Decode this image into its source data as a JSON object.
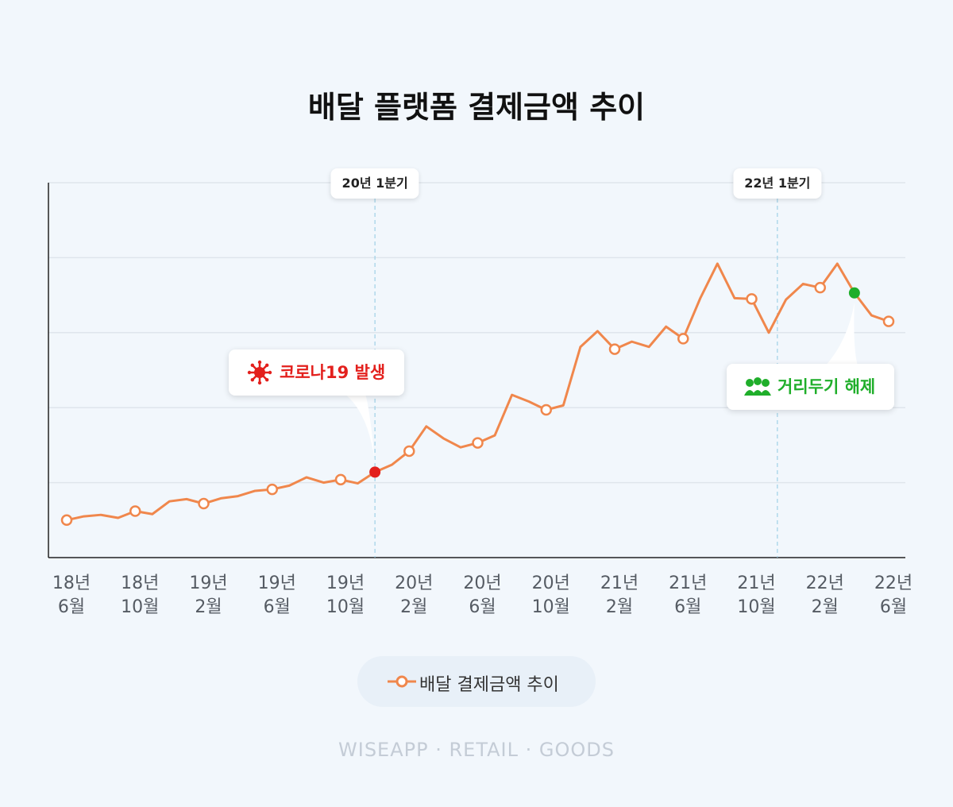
{
  "chart_data": {
    "type": "line",
    "title": "배달 플랫폼 결제금액 추이",
    "categories": [
      "18년 6월",
      null,
      null,
      null,
      "18년 10월",
      null,
      null,
      null,
      "19년 2월",
      null,
      null,
      null,
      "19년 6월",
      null,
      null,
      null,
      "19년 10월",
      null,
      null,
      null,
      "20년 2월",
      null,
      null,
      null,
      "20년 6월",
      null,
      null,
      null,
      "20년 10월",
      null,
      null,
      null,
      "21년 2월",
      null,
      null,
      null,
      "21년 6월",
      null,
      null,
      null,
      "21년 10월",
      null,
      null,
      null,
      "22년 2월",
      null,
      null,
      null,
      "22년 6월"
    ],
    "series": [
      {
        "name": "배달 결제금액 추이",
        "color": "#f0874c",
        "values": [
          0.5,
          0.55,
          0.57,
          0.53,
          0.62,
          0.58,
          0.75,
          0.78,
          0.72,
          0.79,
          0.82,
          0.89,
          0.91,
          0.96,
          1.07,
          1.0,
          1.04,
          0.99,
          1.14,
          1.24,
          1.42,
          1.75,
          1.59,
          1.47,
          1.53,
          1.63,
          2.17,
          2.08,
          1.97,
          2.03,
          2.81,
          3.02,
          2.78,
          2.88,
          2.81,
          3.08,
          2.92,
          3.46,
          3.92,
          3.46,
          3.45,
          3.0,
          3.44,
          3.65,
          3.6,
          3.92,
          3.53,
          3.23,
          3.15
        ]
      }
    ],
    "ylim": [
      0,
      5
    ],
    "yticks": [
      1,
      2,
      3,
      4,
      5
    ],
    "grid": true,
    "vlines": [
      {
        "label": "20년 1분기",
        "index": 18
      },
      {
        "label": "22년 1분기",
        "index": 41.5
      }
    ],
    "annotations": [
      {
        "text": "코로나19 발생",
        "index": 18,
        "color": "#e3201d"
      },
      {
        "text": "거리두기 해제",
        "index": 46,
        "color": "#1fae2a"
      }
    ],
    "footer": "WISEAPP · RETAIL · GOODS"
  }
}
